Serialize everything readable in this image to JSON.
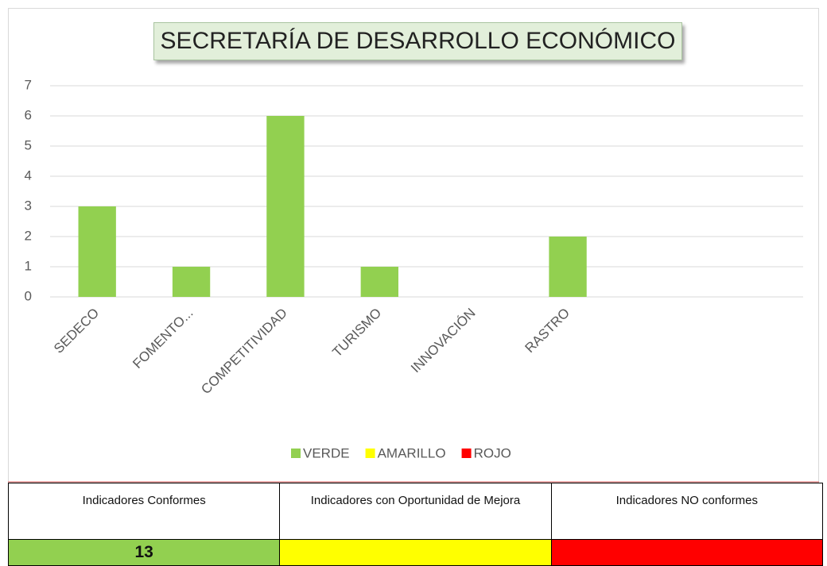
{
  "chart_data": {
    "type": "bar",
    "title": "SECRETARÍA DE DESARROLLO ECONÓMICO",
    "categories": [
      "SEDECO",
      "FOMENTO...",
      "COMPETITIVIDAD",
      "TURISMO",
      "INNOVACIÓN",
      "RASTRO",
      null,
      null
    ],
    "series": [
      {
        "name": "VERDE",
        "color": "#92d050",
        "values": [
          3,
          1,
          6,
          1,
          0,
          2,
          null,
          null
        ]
      },
      {
        "name": "AMARILLO",
        "color": "#ffff00",
        "values": [
          null,
          null,
          null,
          null,
          null,
          null,
          null,
          null
        ]
      },
      {
        "name": "ROJO",
        "color": "#ff0000",
        "values": [
          null,
          null,
          null,
          null,
          null,
          null,
          null,
          null
        ]
      }
    ],
    "ylim": [
      0,
      7
    ],
    "yticks": [
      0,
      1,
      2,
      3,
      4,
      5,
      6,
      7
    ],
    "grid": true,
    "legend": "bottom"
  },
  "table": {
    "cells": [
      {
        "label": "Indicadores Conformes",
        "value": 13,
        "color": "#92d050"
      },
      {
        "label": "Indicadores con Oportunidad de Mejora",
        "color": "#ffff00"
      },
      {
        "label": "Indicadores NO conformes",
        "color": "#ff0000"
      }
    ]
  }
}
